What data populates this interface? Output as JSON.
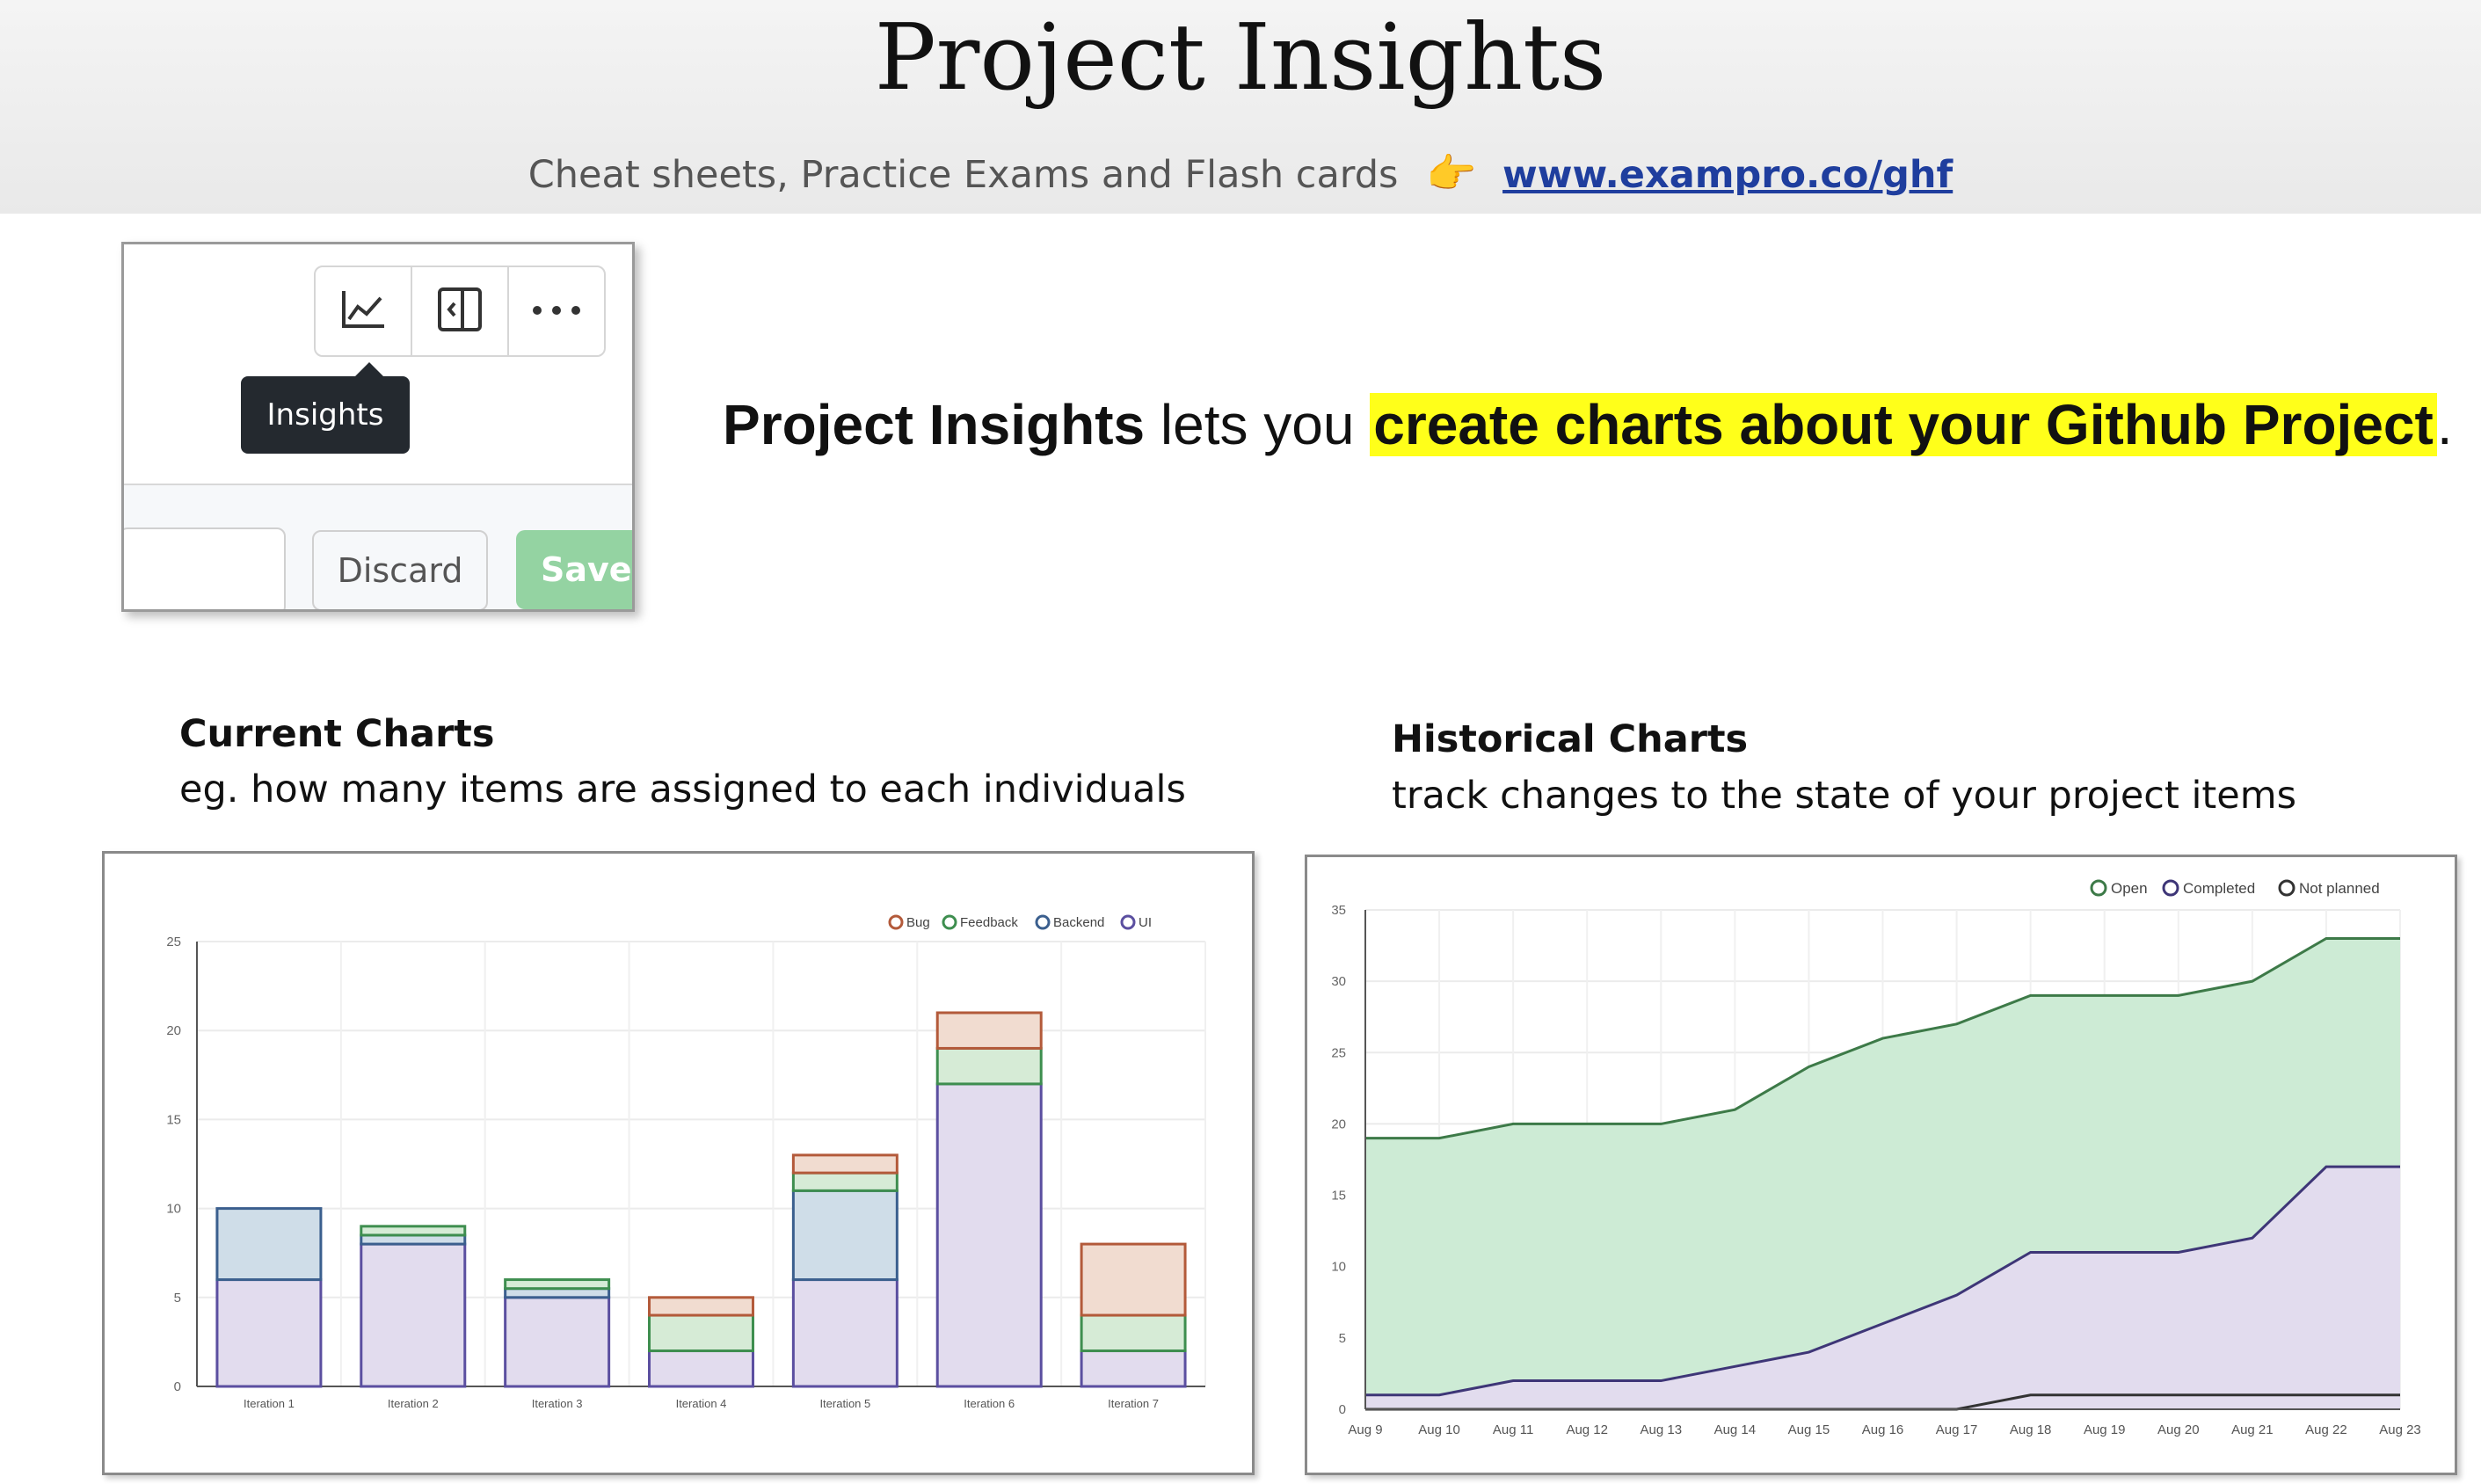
{
  "header": {
    "title": "Project Insights",
    "subtitle": "Cheat sheets, Practice Exams and Flash cards",
    "pointer_glyph": "👉",
    "link": "www.exampro.co/ghf"
  },
  "ui_mock": {
    "buttons": [
      {
        "icon": "line-chart-icon"
      },
      {
        "icon": "sidebar-panel-icon"
      },
      {
        "icon": "more-horizontal-icon"
      }
    ],
    "tooltip": "Insights",
    "discard_label": "Discard",
    "save_label": "Save"
  },
  "description": {
    "bold": "Project Insights",
    "middle": " lets you ",
    "highlight": "create charts about your Github Project",
    "end": "."
  },
  "current": {
    "title": "Current Charts",
    "desc": "eg. how many items are assigned to each individuals"
  },
  "historical": {
    "title": "Historical Charts",
    "desc": "track changes to the state of your project items"
  },
  "chart_data": [
    {
      "type": "bar",
      "stacked": true,
      "categories": [
        "Iteration 1",
        "Iteration 2",
        "Iteration 3",
        "Iteration 4",
        "Iteration 5",
        "Iteration 6",
        "Iteration 7"
      ],
      "series": [
        {
          "name": "UI",
          "values": [
            6,
            8,
            5,
            2,
            6,
            17,
            2
          ],
          "color": "#5b4fa0",
          "fill": "#e2dcee"
        },
        {
          "name": "Backend",
          "values": [
            4,
            0.5,
            0.5,
            0,
            5,
            0,
            0
          ],
          "color": "#3b5f8e",
          "fill": "#cfdde8"
        },
        {
          "name": "Feedback",
          "values": [
            0,
            0.5,
            0.5,
            2,
            1,
            2,
            2
          ],
          "color": "#3e8e4f",
          "fill": "#d6ebd6"
        },
        {
          "name": "Bug",
          "values": [
            0,
            0,
            0,
            1,
            1,
            2,
            4
          ],
          "color": "#b35a3a",
          "fill": "#f1dcd0"
        }
      ],
      "legend": [
        "Bug",
        "Feedback",
        "Backend",
        "UI"
      ],
      "legend_position": "top-right",
      "ylim": [
        0,
        25
      ],
      "yticks": [
        0,
        5,
        10,
        15,
        20,
        25
      ],
      "grid": true
    },
    {
      "type": "area",
      "x": [
        "Aug 9",
        "Aug 10",
        "Aug 11",
        "Aug 12",
        "Aug 13",
        "Aug 14",
        "Aug 15",
        "Aug 16",
        "Aug 17",
        "Aug 18",
        "Aug 19",
        "Aug 20",
        "Aug 21",
        "Aug 22",
        "Aug 23"
      ],
      "series": [
        {
          "name": "Open",
          "values": [
            19,
            19,
            20,
            20,
            20,
            21,
            24,
            26,
            27,
            29,
            29,
            29,
            30,
            33,
            33
          ],
          "color": "#3d7a48",
          "fill": "#cdebd5"
        },
        {
          "name": "Completed",
          "values": [
            1,
            1,
            2,
            2,
            2,
            3,
            4,
            6,
            8,
            11,
            11,
            11,
            12,
            17,
            17
          ],
          "color": "#3e3677",
          "fill": "#e2dcee"
        },
        {
          "name": "Not planned",
          "values": [
            0,
            0,
            0,
            0,
            0,
            0,
            0,
            0,
            0,
            1,
            1,
            1,
            1,
            1,
            1
          ],
          "color": "#333333",
          "fill": "#e2dcee"
        }
      ],
      "legend": [
        "Open",
        "Completed",
        "Not planned"
      ],
      "legend_position": "top-right",
      "ylim": [
        0,
        35
      ],
      "yticks": [
        0,
        5,
        10,
        15,
        20,
        25,
        30,
        35
      ],
      "grid": true
    }
  ]
}
